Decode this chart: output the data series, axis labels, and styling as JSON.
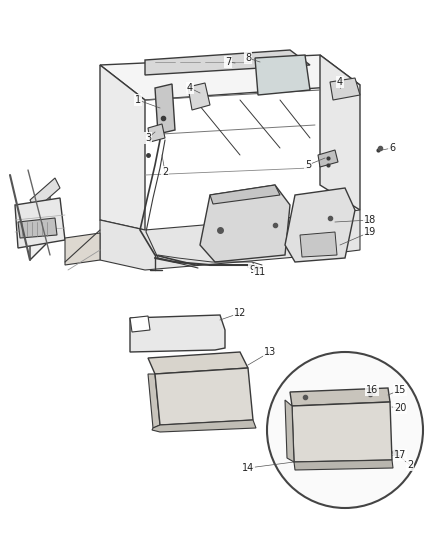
{
  "bg_color": "#ffffff",
  "fig_width": 4.38,
  "fig_height": 5.33,
  "dpi": 100,
  "line_color": "#3a3a3a",
  "fill_light": "#e8e8e8",
  "fill_mid": "#d0d0d0",
  "fill_dark": "#b8b8b8",
  "label_fontsize": 7.0,
  "label_color": "#222222"
}
